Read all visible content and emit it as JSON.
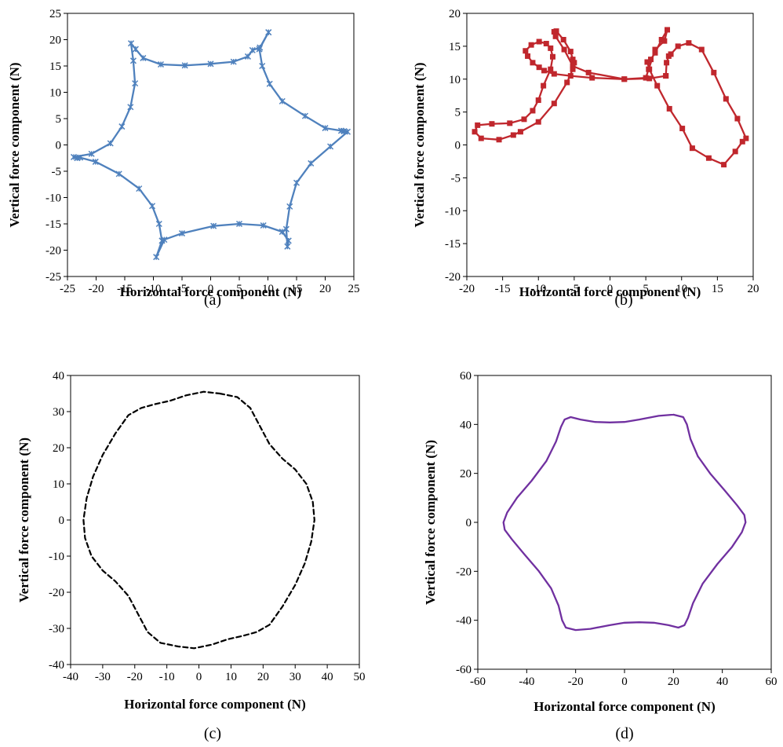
{
  "chart_data": [
    {
      "type": "line",
      "panel": "(a)",
      "caption": "(a)",
      "xlabel": "Horizontal force component (N)",
      "ylabel": "Vertical force component (N)",
      "xlim": [
        -25,
        25
      ],
      "ylim": [
        -25,
        25
      ],
      "xticks": [
        -25,
        -20,
        -15,
        -10,
        -5,
        0,
        5,
        10,
        15,
        20,
        25
      ],
      "yticks": [
        -25,
        -20,
        -15,
        -10,
        -5,
        0,
        5,
        10,
        15,
        20,
        25
      ],
      "color": "#4F81BD",
      "marker": "x",
      "line_style": "solid",
      "grid": false,
      "series": [
        {
          "x": [
            10.1,
            8.6,
            7.3,
            6.5,
            4.0,
            0.0,
            -4.5,
            -8.7,
            -11.8,
            -13.1,
            -13.9,
            -13.5,
            -13.2,
            -14.0,
            -15.5,
            -17.5,
            -20.8,
            -23.9,
            -23.3,
            -22.8,
            -20.1,
            -16.0,
            -12.5,
            -10.2,
            -9.0,
            -8.5,
            -9.5,
            -8.1,
            -5.0,
            0.5,
            5.0,
            9.2,
            12.5,
            13.6,
            13.4,
            13.2,
            13.8,
            15.0,
            17.5,
            20.9,
            23.9,
            23.3,
            22.8,
            20.0,
            16.5,
            12.5,
            10.3,
            9.0,
            8.5,
            10.1
          ],
          "y": [
            21.4,
            18.5,
            18.0,
            16.8,
            15.8,
            15.4,
            15.1,
            15.3,
            16.5,
            18.2,
            19.3,
            16.0,
            11.7,
            7.2,
            3.5,
            0.3,
            -1.7,
            -2.3,
            -2.5,
            -2.4,
            -3.2,
            -5.5,
            -8.3,
            -11.6,
            -15.0,
            -18.2,
            -21.3,
            -18.0,
            -16.8,
            -15.4,
            -15.0,
            -15.3,
            -16.5,
            -18.2,
            -19.3,
            -16.0,
            -11.7,
            -7.2,
            -3.5,
            -0.3,
            2.5,
            2.6,
            2.7,
            3.2,
            5.5,
            8.3,
            11.6,
            15.0,
            18.2,
            21.4
          ]
        }
      ]
    },
    {
      "type": "line",
      "panel": "(b)",
      "caption": "(b)",
      "xlabel": "Horizontal force component (N)",
      "ylabel": "Vertical force component (N)",
      "xlim": [
        -20,
        20
      ],
      "ylim": [
        -20,
        20
      ],
      "xticks": [
        -20,
        -15,
        -10,
        -5,
        0,
        5,
        10,
        15,
        20
      ],
      "yticks": [
        -20,
        -15,
        -10,
        -5,
        0,
        5,
        10,
        15,
        20
      ],
      "color": "#C0272D",
      "marker": "square",
      "line_style": "solid",
      "grid": false,
      "series": [
        {
          "x": [
            7.8,
            7.9,
            8.2,
            8.5,
            9.5,
            11.0,
            12.8,
            14.5,
            16.2,
            17.8,
            19.0,
            18.5,
            17.5,
            15.9,
            13.8,
            11.5,
            10.1,
            8.3,
            6.6,
            5.5,
            5.2,
            5.7,
            6.3,
            7.2,
            8.0,
            7.6,
            6.3,
            5.4,
            5.0,
            2.0,
            -2.5,
            -5.5,
            -7.8,
            -9.2,
            -9.9,
            -10.8,
            -11.5,
            -11.8,
            -11.0,
            -9.9,
            -8.9,
            -8.3,
            -8.0,
            -8.3,
            -9.3,
            -10.0,
            -10.8,
            -12.0,
            -14.0,
            -16.5,
            -18.5,
            -18.9,
            -18.0,
            -15.5,
            -13.5,
            -12.5,
            -10.0,
            -7.8,
            -6.0,
            -5.2,
            -5.0,
            -5.2,
            -5.5,
            -6.5,
            -7.5,
            -7.8,
            -7.6,
            -6.4,
            -5.2,
            -3.0,
            2.0,
            5.5,
            7.8
          ],
          "y": [
            10.5,
            12.5,
            13.5,
            13.8,
            15.0,
            15.5,
            14.5,
            11.0,
            7.0,
            4.0,
            1.0,
            0.5,
            -1.0,
            -3.0,
            -2.0,
            -0.5,
            2.5,
            5.5,
            9.0,
            11.5,
            12.6,
            13.0,
            14.0,
            16.0,
            17.5,
            15.8,
            14.5,
            11.5,
            10.2,
            10.0,
            10.2,
            10.5,
            10.8,
            11.3,
            11.8,
            12.5,
            13.5,
            14.3,
            15.2,
            15.7,
            15.4,
            14.7,
            13.4,
            11.5,
            9.0,
            6.8,
            5.2,
            3.9,
            3.3,
            3.2,
            3.0,
            2.0,
            1.0,
            0.8,
            1.5,
            2.0,
            3.5,
            6.3,
            9.5,
            11.5,
            12.5,
            13.0,
            14.2,
            16.0,
            17.3,
            17.2,
            16.5,
            14.5,
            12.0,
            11.0,
            10.0,
            10.1,
            10.5
          ]
        }
      ]
    },
    {
      "type": "line",
      "panel": "(c)",
      "caption": "(c)",
      "xlabel": "Horizontal force component (N)",
      "ylabel": "Vertical force component (N)",
      "xlim": [
        -40,
        50
      ],
      "ylim": [
        -40,
        40
      ],
      "xticks": [
        -40,
        -30,
        -20,
        -10,
        0,
        10,
        20,
        30,
        40,
        50
      ],
      "yticks": [
        -40,
        -30,
        -20,
        -10,
        0,
        10,
        20,
        30,
        40
      ],
      "color": "#000000",
      "marker": "none",
      "line_style": "dashed",
      "grid": false,
      "series": [
        {
          "x": [
            6.5,
            12.0,
            16.0,
            19.0,
            22.0,
            26.0,
            30.0,
            33.5,
            35.5,
            36.0,
            35.0,
            33.0,
            30.0,
            26.0,
            22.0,
            18.0,
            14.0,
            9.0,
            4.0,
            -1.5,
            -6.5,
            -12.0,
            -16.0,
            -19.0,
            -22.0,
            -26.0,
            -30.0,
            -33.5,
            -35.5,
            -36.0,
            -35.0,
            -33.0,
            -30.0,
            -26.0,
            -22.0,
            -18.0,
            -14.0,
            -9.0,
            -4.0,
            1.5,
            6.5
          ],
          "y": [
            35.0,
            34.0,
            31.0,
            26.0,
            21.0,
            17.0,
            14.0,
            10.0,
            5.0,
            0.0,
            -6.0,
            -12.0,
            -18.0,
            -24.0,
            -29.0,
            -31.0,
            -32.0,
            -33.0,
            -34.5,
            -35.5,
            -35.0,
            -34.0,
            -31.0,
            -26.0,
            -21.0,
            -17.0,
            -14.0,
            -10.0,
            -5.0,
            0.0,
            6.0,
            12.0,
            18.0,
            24.0,
            29.0,
            31.0,
            32.0,
            33.0,
            34.5,
            35.5,
            35.0
          ]
        }
      ]
    },
    {
      "type": "line",
      "panel": "(d)",
      "caption": "(d)",
      "xlabel": "Horizontal force component (N)",
      "ylabel": "Vertical force component (N)",
      "xlim": [
        -60,
        60
      ],
      "ylim": [
        -60,
        60
      ],
      "xticks": [
        -60,
        -40,
        -20,
        0,
        20,
        40,
        60
      ],
      "yticks": [
        -60,
        -40,
        -20,
        0,
        20,
        40,
        60
      ],
      "color": "#7030A0",
      "marker": "none",
      "line_style": "solid",
      "grid": false,
      "series": [
        {
          "x": [
            20.0,
            24.0,
            25.5,
            27.0,
            30.0,
            35.0,
            41.0,
            46.0,
            49.0,
            49.5,
            48.0,
            44.0,
            38.0,
            32.0,
            28.0,
            26.0,
            24.5,
            22.0,
            18.0,
            12.0,
            6.0,
            0.0,
            -6.0,
            -14.0,
            -20.0,
            -24.0,
            -25.5,
            -27.0,
            -30.0,
            -35.0,
            -41.0,
            -46.0,
            -49.0,
            -49.5,
            -48.0,
            -44.0,
            -38.0,
            -32.0,
            -28.0,
            -26.0,
            -24.5,
            -22.0,
            -18.0,
            -12.0,
            -6.0,
            0.0,
            6.0,
            14.0,
            20.0
          ],
          "y": [
            44.0,
            43.0,
            40.0,
            34.0,
            27.0,
            20.0,
            13.0,
            7.0,
            3.0,
            0.0,
            -4.0,
            -10.0,
            -17.0,
            -25.0,
            -33.0,
            -39.0,
            -42.0,
            -43.0,
            -42.0,
            -41.0,
            -40.8,
            -41.0,
            -42.0,
            -43.5,
            -44.0,
            -43.0,
            -40.0,
            -34.0,
            -27.0,
            -20.0,
            -13.0,
            -7.0,
            -3.0,
            0.0,
            4.0,
            10.0,
            17.0,
            25.0,
            33.0,
            39.0,
            42.0,
            43.0,
            42.0,
            41.0,
            40.8,
            41.0,
            42.0,
            43.5,
            44.0
          ]
        }
      ]
    }
  ]
}
